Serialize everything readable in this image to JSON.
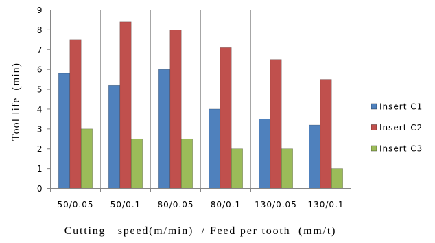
{
  "chart_data": {
    "type": "bar",
    "categories": [
      "50/0.05",
      "50/0.1",
      "80/0.05",
      "80/0.1",
      "130/0.05",
      "130/0.1"
    ],
    "series": [
      {
        "name": "Insert C1",
        "values": [
          5.8,
          5.2,
          6.0,
          4.0,
          3.5,
          3.2
        ],
        "color": "#4F81BD"
      },
      {
        "name": "Insert C2",
        "values": [
          7.5,
          8.4,
          8.0,
          7.1,
          6.5,
          5.5
        ],
        "color": "#C0504D"
      },
      {
        "name": "Insert C3",
        "values": [
          3.0,
          2.5,
          2.5,
          2.0,
          2.0,
          1.0
        ],
        "color": "#9BBB59"
      }
    ],
    "xlabel": "Cutting   speed(m/min)  / Feed per tooth  (mm/t)",
    "ylabel": "Tool life  (min)",
    "ylim": [
      0,
      9
    ],
    "yticks": [
      0,
      1,
      2,
      3,
      4,
      5,
      6,
      7,
      8,
      9
    ],
    "grid": {
      "horizontal": false,
      "vertical": true
    },
    "legend": "right"
  }
}
